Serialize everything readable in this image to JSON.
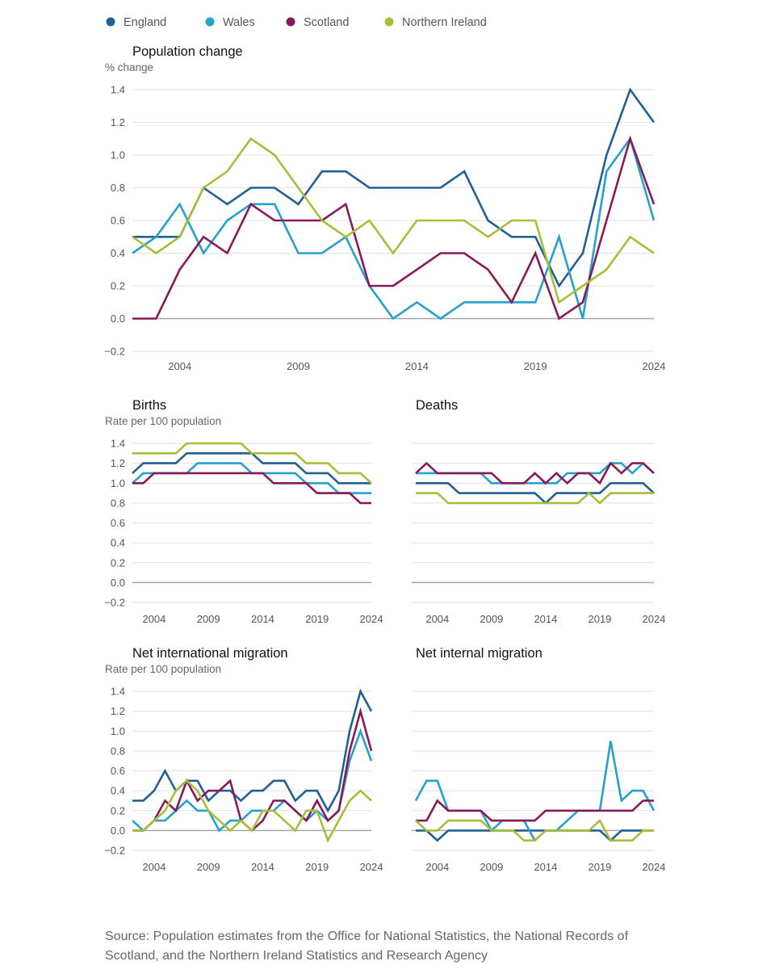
{
  "legend": [
    {
      "name": "England",
      "color": "#206095"
    },
    {
      "name": "Wales",
      "color": "#27a0cc"
    },
    {
      "name": "Scotland",
      "color": "#871a5b"
    },
    {
      "name": "Northern Ireland",
      "color": "#a8bd3a"
    }
  ],
  "source": "Source: Population estimates from the Office for National Statistics, the National Records of Scotland, and the Northern Ireland Statistics and Research Agency",
  "chart_data": [
    {
      "type": "line",
      "title": "Population change",
      "ylabel": "% change",
      "x": [
        2002,
        2003,
        2004,
        2005,
        2006,
        2007,
        2008,
        2009,
        2010,
        2011,
        2012,
        2013,
        2014,
        2015,
        2016,
        2017,
        2018,
        2019,
        2020,
        2021,
        2022,
        2023,
        2024
      ],
      "xticks": [
        2004,
        2009,
        2014,
        2019,
        2024
      ],
      "yticks": [
        -0.2,
        0.0,
        0.2,
        0.4,
        0.6,
        0.8,
        1.0,
        1.2,
        1.4
      ],
      "ytick_labels": [
        "−0.2",
        "0.0",
        "0.2",
        "0.4",
        "0.6",
        "0.8",
        "1.0",
        "1.2",
        "1.4"
      ],
      "ylim": [
        -0.2,
        1.4
      ],
      "series": [
        {
          "name": "England",
          "values": [
            0.5,
            0.5,
            0.5,
            0.8,
            0.7,
            0.8,
            0.8,
            0.7,
            0.9,
            0.9,
            0.8,
            0.8,
            0.8,
            0.8,
            0.9,
            0.6,
            0.5,
            0.5,
            0.2,
            0.4,
            1.0,
            1.4,
            1.2
          ]
        },
        {
          "name": "Wales",
          "values": [
            0.4,
            0.5,
            0.7,
            0.4,
            0.6,
            0.7,
            0.7,
            0.4,
            0.4,
            0.5,
            0.2,
            0.0,
            0.1,
            0.0,
            0.1,
            0.1,
            0.1,
            0.1,
            0.5,
            0.0,
            0.9,
            1.1,
            0.6
          ]
        },
        {
          "name": "Scotland",
          "values": [
            0.0,
            0.0,
            0.3,
            0.5,
            0.4,
            0.7,
            0.6,
            0.6,
            0.6,
            0.7,
            0.2,
            0.2,
            0.3,
            0.4,
            0.4,
            0.3,
            0.1,
            0.4,
            0.0,
            0.1,
            0.6,
            1.1,
            0.7
          ]
        },
        {
          "name": "Northern Ireland",
          "values": [
            0.5,
            0.4,
            0.5,
            0.8,
            0.9,
            1.1,
            1.0,
            0.8,
            0.6,
            0.5,
            0.6,
            0.4,
            0.6,
            0.6,
            0.6,
            0.5,
            0.6,
            0.6,
            0.1,
            0.2,
            0.3,
            0.5,
            0.4
          ]
        }
      ]
    },
    {
      "type": "line",
      "title": "Births",
      "ylabel": "Rate per 100 population",
      "x": [
        2002,
        2003,
        2004,
        2005,
        2006,
        2007,
        2008,
        2009,
        2010,
        2011,
        2012,
        2013,
        2014,
        2015,
        2016,
        2017,
        2018,
        2019,
        2020,
        2021,
        2022,
        2023,
        2024
      ],
      "xticks": [
        2004,
        2009,
        2014,
        2019,
        2024
      ],
      "yticks": [
        -0.2,
        0.0,
        0.2,
        0.4,
        0.6,
        0.8,
        1.0,
        1.2,
        1.4
      ],
      "ytick_labels": [
        "−0.2",
        "0.0",
        "0.2",
        "0.4",
        "0.6",
        "0.8",
        "1.0",
        "1.2",
        "1.4"
      ],
      "ylim": [
        -0.2,
        1.4
      ],
      "series": [
        {
          "name": "England",
          "values": [
            1.1,
            1.2,
            1.2,
            1.2,
            1.2,
            1.3,
            1.3,
            1.3,
            1.3,
            1.3,
            1.3,
            1.3,
            1.2,
            1.2,
            1.2,
            1.2,
            1.1,
            1.1,
            1.1,
            1.0,
            1.0,
            1.0,
            1.0
          ]
        },
        {
          "name": "Wales",
          "values": [
            1.0,
            1.1,
            1.1,
            1.1,
            1.1,
            1.1,
            1.2,
            1.2,
            1.2,
            1.2,
            1.2,
            1.1,
            1.1,
            1.1,
            1.1,
            1.1,
            1.0,
            1.0,
            1.0,
            0.9,
            0.9,
            0.9,
            0.9
          ]
        },
        {
          "name": "Scotland",
          "values": [
            1.0,
            1.0,
            1.1,
            1.1,
            1.1,
            1.1,
            1.1,
            1.1,
            1.1,
            1.1,
            1.1,
            1.1,
            1.1,
            1.0,
            1.0,
            1.0,
            1.0,
            0.9,
            0.9,
            0.9,
            0.9,
            0.8,
            0.8
          ]
        },
        {
          "name": "Northern Ireland",
          "values": [
            1.3,
            1.3,
            1.3,
            1.3,
            1.3,
            1.4,
            1.4,
            1.4,
            1.4,
            1.4,
            1.4,
            1.3,
            1.3,
            1.3,
            1.3,
            1.3,
            1.2,
            1.2,
            1.2,
            1.1,
            1.1,
            1.1,
            1.0
          ]
        }
      ]
    },
    {
      "type": "line",
      "title": "Deaths",
      "ylabel": "",
      "x": [
        2002,
        2003,
        2004,
        2005,
        2006,
        2007,
        2008,
        2009,
        2010,
        2011,
        2012,
        2013,
        2014,
        2015,
        2016,
        2017,
        2018,
        2019,
        2020,
        2021,
        2022,
        2023,
        2024
      ],
      "xticks": [
        2004,
        2009,
        2014,
        2019,
        2024
      ],
      "yticks": [
        -0.2,
        0.0,
        0.2,
        0.4,
        0.6,
        0.8,
        1.0,
        1.2,
        1.4
      ],
      "ytick_labels": [],
      "ylim": [
        -0.2,
        1.4
      ],
      "series": [
        {
          "name": "England",
          "values": [
            1.0,
            1.0,
            1.0,
            1.0,
            0.9,
            0.9,
            0.9,
            0.9,
            0.9,
            0.9,
            0.9,
            0.9,
            0.8,
            0.9,
            0.9,
            0.9,
            0.9,
            0.9,
            1.0,
            1.0,
            1.0,
            1.0,
            0.9
          ]
        },
        {
          "name": "Wales",
          "values": [
            1.1,
            1.1,
            1.1,
            1.1,
            1.1,
            1.1,
            1.1,
            1.0,
            1.0,
            1.0,
            1.0,
            1.0,
            1.0,
            1.0,
            1.1,
            1.1,
            1.1,
            1.1,
            1.2,
            1.2,
            1.1,
            1.2,
            1.1
          ]
        },
        {
          "name": "Scotland",
          "values": [
            1.1,
            1.2,
            1.1,
            1.1,
            1.1,
            1.1,
            1.1,
            1.1,
            1.0,
            1.0,
            1.0,
            1.1,
            1.0,
            1.1,
            1.0,
            1.1,
            1.1,
            1.0,
            1.2,
            1.1,
            1.2,
            1.2,
            1.1
          ]
        },
        {
          "name": "Northern Ireland",
          "values": [
            0.9,
            0.9,
            0.9,
            0.8,
            0.8,
            0.8,
            0.8,
            0.8,
            0.8,
            0.8,
            0.8,
            0.8,
            0.8,
            0.8,
            0.8,
            0.8,
            0.9,
            0.8,
            0.9,
            0.9,
            0.9,
            0.9,
            0.9
          ]
        }
      ]
    },
    {
      "type": "line",
      "title": "Net international migration",
      "ylabel": "Rate per 100 population",
      "x": [
        2002,
        2003,
        2004,
        2005,
        2006,
        2007,
        2008,
        2009,
        2010,
        2011,
        2012,
        2013,
        2014,
        2015,
        2016,
        2017,
        2018,
        2019,
        2020,
        2021,
        2022,
        2023,
        2024
      ],
      "xticks": [
        2004,
        2009,
        2014,
        2019,
        2024
      ],
      "yticks": [
        -0.2,
        0.0,
        0.2,
        0.4,
        0.6,
        0.8,
        1.0,
        1.2,
        1.4
      ],
      "ytick_labels": [
        "−0.2",
        "0.0",
        "0.2",
        "0.4",
        "0.6",
        "0.8",
        "1.0",
        "1.2",
        "1.4"
      ],
      "ylim": [
        -0.2,
        1.4
      ],
      "series": [
        {
          "name": "England",
          "values": [
            0.3,
            0.3,
            0.4,
            0.6,
            0.4,
            0.5,
            0.5,
            0.3,
            0.4,
            0.4,
            0.3,
            0.4,
            0.4,
            0.5,
            0.5,
            0.3,
            0.4,
            0.4,
            0.2,
            0.4,
            1.0,
            1.4,
            1.2
          ]
        },
        {
          "name": "Wales",
          "values": [
            0.1,
            0.0,
            0.1,
            0.1,
            0.2,
            0.3,
            0.2,
            0.2,
            0.0,
            0.1,
            0.1,
            0.2,
            0.2,
            0.2,
            0.3,
            0.2,
            0.1,
            0.2,
            0.1,
            0.2,
            0.7,
            1.0,
            0.7
          ]
        },
        {
          "name": "Scotland",
          "values": [
            0.0,
            0.0,
            0.1,
            0.3,
            0.2,
            0.5,
            0.3,
            0.4,
            0.4,
            0.5,
            0.1,
            0.0,
            0.1,
            0.3,
            0.3,
            0.2,
            0.1,
            0.3,
            0.1,
            0.2,
            0.8,
            1.2,
            0.8
          ]
        },
        {
          "name": "Northern Ireland",
          "values": [
            0.0,
            0.0,
            0.1,
            0.2,
            0.4,
            0.5,
            0.4,
            0.2,
            0.1,
            0.0,
            0.1,
            0.0,
            0.2,
            0.2,
            0.1,
            0.0,
            0.2,
            0.2,
            -0.1,
            0.1,
            0.3,
            0.4,
            0.3
          ]
        }
      ]
    },
    {
      "type": "line",
      "title": "Net internal migration",
      "ylabel": "",
      "x": [
        2002,
        2003,
        2004,
        2005,
        2006,
        2007,
        2008,
        2009,
        2010,
        2011,
        2012,
        2013,
        2014,
        2015,
        2016,
        2017,
        2018,
        2019,
        2020,
        2021,
        2022,
        2023,
        2024
      ],
      "xticks": [
        2004,
        2009,
        2014,
        2019,
        2024
      ],
      "yticks": [
        -0.2,
        0.0,
        0.2,
        0.4,
        0.6,
        0.8,
        1.0,
        1.2,
        1.4
      ],
      "ytick_labels": [],
      "ylim": [
        -0.2,
        1.4
      ],
      "series": [
        {
          "name": "England",
          "values": [
            0.0,
            0.0,
            -0.1,
            0.0,
            0.0,
            0.0,
            0.0,
            0.0,
            0.0,
            0.0,
            0.0,
            0.0,
            0.0,
            0.0,
            0.0,
            0.0,
            0.0,
            0.0,
            -0.1,
            0.0,
            0.0,
            0.0,
            0.0
          ]
        },
        {
          "name": "Wales",
          "values": [
            0.3,
            0.5,
            0.5,
            0.2,
            0.2,
            0.2,
            0.2,
            0.0,
            0.1,
            0.1,
            0.1,
            -0.1,
            0.0,
            0.0,
            0.1,
            0.2,
            0.2,
            0.2,
            0.9,
            0.3,
            0.4,
            0.4,
            0.2
          ]
        },
        {
          "name": "Scotland",
          "values": [
            0.1,
            0.1,
            0.3,
            0.2,
            0.2,
            0.2,
            0.2,
            0.1,
            0.1,
            0.1,
            0.1,
            0.1,
            0.2,
            0.2,
            0.2,
            0.2,
            0.2,
            0.2,
            0.2,
            0.2,
            0.2,
            0.3,
            0.3
          ]
        },
        {
          "name": "Northern Ireland",
          "values": [
            0.1,
            0.0,
            0.0,
            0.1,
            0.1,
            0.1,
            0.1,
            0.0,
            0.0,
            0.0,
            -0.1,
            -0.1,
            0.0,
            0.0,
            0.0,
            0.0,
            0.0,
            0.1,
            -0.1,
            -0.1,
            -0.1,
            0.0,
            0.0
          ]
        }
      ]
    }
  ]
}
